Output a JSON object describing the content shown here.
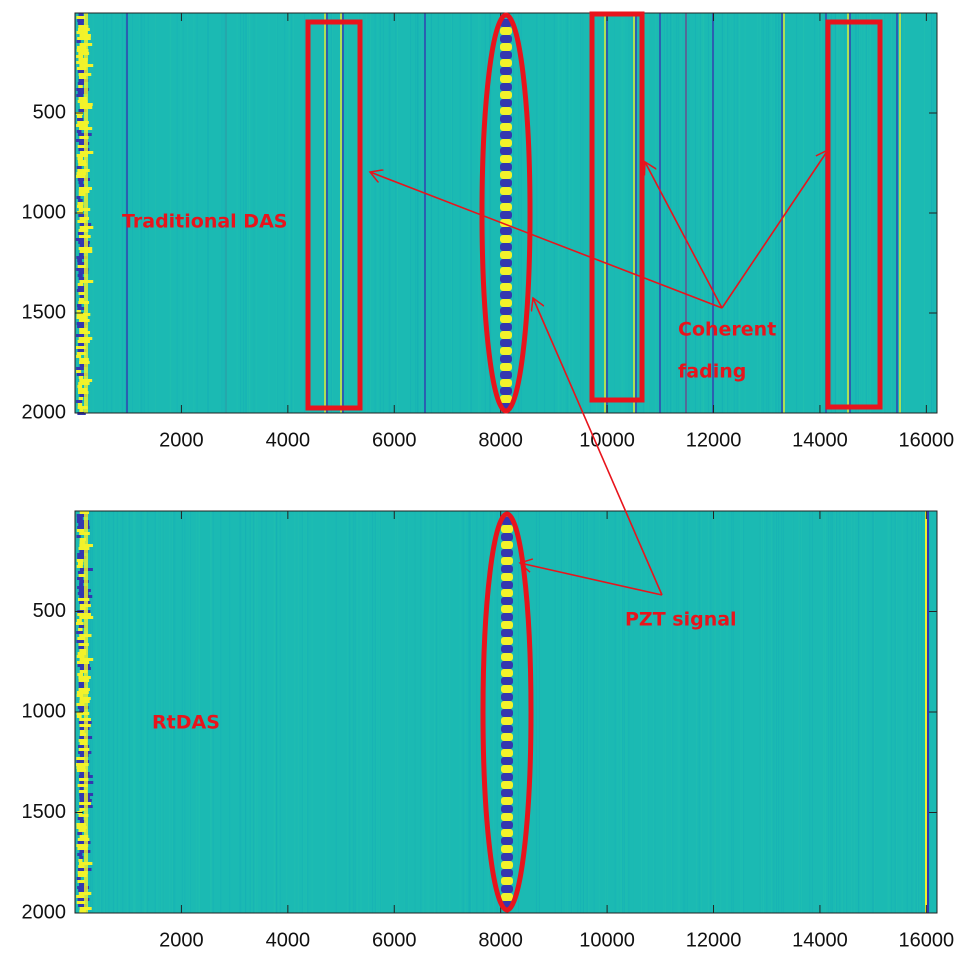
{
  "chart_data": [
    {
      "type": "heatmap",
      "xlim": [
        0,
        16200
      ],
      "ylim": [
        0,
        2000
      ],
      "yreverse": true,
      "xticks": [
        2000,
        4000,
        6000,
        8000,
        10000,
        12000,
        14000,
        16000
      ],
      "yticks": [
        500,
        1000,
        1500,
        2000
      ],
      "color": "#1bbab3",
      "annotations": [
        {
          "lines": [
            "Traditional DAS"
          ]
        },
        {
          "lines": [
            "Coherent",
            "fading"
          ]
        }
      ]
    },
    {
      "type": "heatmap",
      "xlim": [
        0,
        16200
      ],
      "ylim": [
        0,
        2000
      ],
      "yreverse": true,
      "xticks": [
        2000,
        4000,
        6000,
        8000,
        10000,
        12000,
        14000,
        16000
      ],
      "yticks": [
        500,
        1000,
        1500,
        2000
      ],
      "color": "#1bbab3",
      "annotations": [
        {
          "lines": [
            "PZT signal"
          ]
        },
        {
          "lines": [
            "RtDAS"
          ]
        }
      ]
    }
  ]
}
